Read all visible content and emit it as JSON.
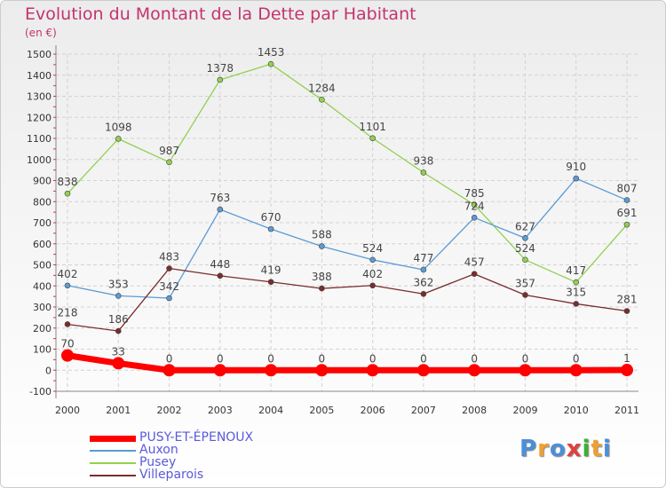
{
  "title": "Evolution du Montant de la Dette par Habitant",
  "subtitle": "(en €)",
  "logo": {
    "text": "Proxiti",
    "colors": [
      "#4a90d9",
      "#f0a030",
      "#4a90d9",
      "#e04040",
      "#3cb034",
      "#f0a030",
      "#4a90d9"
    ]
  },
  "chart_data": {
    "type": "line",
    "x": [
      "2000",
      "2001",
      "2002",
      "2003",
      "2004",
      "2005",
      "2006",
      "2007",
      "2008",
      "2009",
      "2010",
      "2011"
    ],
    "y_ticks": [
      1500,
      1400,
      1300,
      1200,
      1100,
      1000,
      900,
      800,
      700,
      600,
      500,
      400,
      300,
      200,
      100,
      0,
      -100
    ],
    "ylim": [
      -100,
      1500
    ],
    "grid": true,
    "legend_position": "bottom-left",
    "series": [
      {
        "name": "PUSY-ET-ÉPENOUX",
        "color": "#ff0000",
        "values": [
          70,
          33,
          0,
          0,
          0,
          0,
          0,
          0,
          0,
          0,
          0,
          1
        ],
        "labels": [
          "70",
          "33",
          "0",
          "0",
          "0",
          "0",
          "0",
          "0",
          "0",
          "0",
          "0",
          "1"
        ]
      },
      {
        "name": "Auxon",
        "color": "#5b9bd5",
        "values": [
          402,
          353,
          342,
          763,
          670,
          588,
          524,
          477,
          724,
          627,
          910,
          807
        ],
        "labels": [
          "402",
          "353",
          "342",
          "763",
          "670",
          "588",
          "524",
          "477",
          "724",
          "627",
          "910",
          "807"
        ]
      },
      {
        "name": "Pusey",
        "color": "#92d050",
        "values": [
          838,
          1098,
          987,
          1378,
          1453,
          1284,
          1101,
          938,
          785,
          524,
          417,
          691
        ],
        "labels": [
          "838",
          "1098",
          "987",
          "1378",
          "1453",
          "1284",
          "1101",
          "938",
          "785",
          "524",
          "417",
          "691"
        ]
      },
      {
        "name": "Villeparois",
        "color": "#7b2c2c",
        "values": [
          218,
          186,
          483,
          448,
          419,
          388,
          402,
          362,
          457,
          357,
          315,
          281
        ],
        "labels": [
          "218",
          "186",
          "483",
          "448",
          "419",
          "388",
          "402",
          "362",
          "457",
          "357",
          "315",
          "281"
        ]
      }
    ]
  }
}
